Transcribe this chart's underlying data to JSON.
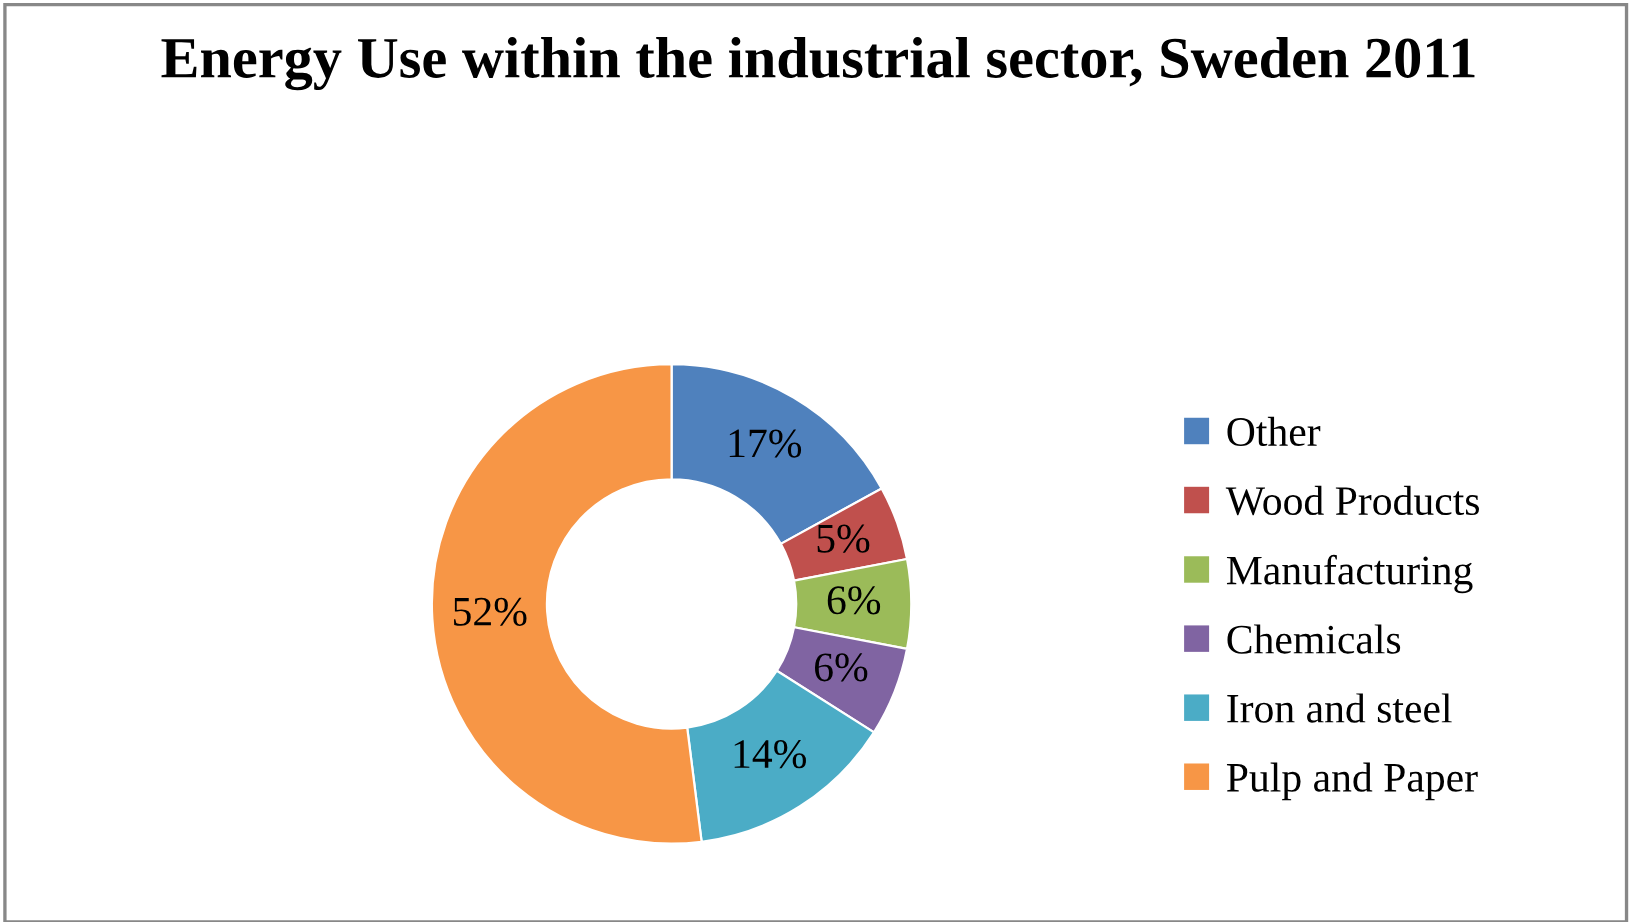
{
  "chart_data": {
    "type": "donut",
    "title": "Energy Use within the industrial sector, Sweden 2011",
    "categories": [
      "Other",
      "Wood Products",
      "Manufacturing",
      "Chemicals",
      "Iron and steel",
      "Pulp and Paper"
    ],
    "values": [
      17,
      5,
      6,
      6,
      14,
      52
    ],
    "colors": [
      "#4f81bd",
      "#c0504d",
      "#9bbb59",
      "#8064a2",
      "#4bacc6",
      "#f79646"
    ],
    "value_labels": [
      "17%",
      "5%",
      "6%",
      "6%",
      "14%",
      "52%"
    ],
    "legend": "right"
  }
}
